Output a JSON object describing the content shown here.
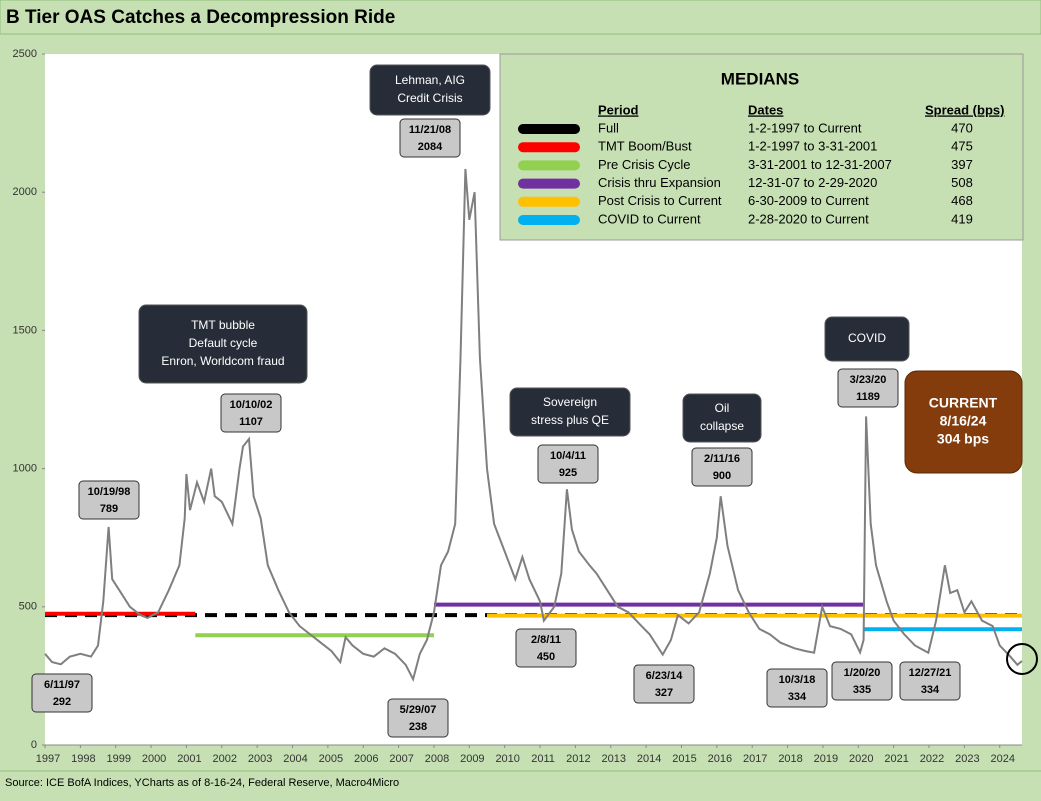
{
  "chart_data": {
    "type": "line",
    "title": "B Tier OAS Catches a Decompression Ride",
    "source": "Source: ICE BofA Indices, YCharts as of 8-16-24, Federal Reserve, Macro4Micro",
    "xlim": [
      1997,
      2024.63
    ],
    "ylim": [
      0,
      2500
    ],
    "xticks": [
      1997,
      1998,
      1999,
      2000,
      2001,
      2002,
      2003,
      2004,
      2005,
      2006,
      2007,
      2008,
      2009,
      2010,
      2011,
      2012,
      2013,
      2014,
      2015,
      2016,
      2017,
      2018,
      2019,
      2020,
      2021,
      2022,
      2023,
      2024
    ],
    "yticks": [
      0,
      500,
      1000,
      1500,
      2000,
      2500
    ],
    "series": [
      {
        "name": "B Tier OAS",
        "color": "#7f7f7f",
        "x": [
          1997.0,
          1997.2,
          1997.45,
          1997.7,
          1998.0,
          1998.3,
          1998.5,
          1998.65,
          1998.8,
          1998.9,
          1999.1,
          1999.4,
          1999.7,
          1999.9,
          2000.2,
          2000.5,
          2000.8,
          2000.95,
          2001.0,
          2001.1,
          2001.3,
          2001.5,
          2001.7,
          2001.8,
          2002.0,
          2002.3,
          2002.5,
          2002.6,
          2002.77,
          2002.9,
          2003.1,
          2003.3,
          2003.6,
          2003.9,
          2004.2,
          2004.5,
          2004.8,
          2005.1,
          2005.35,
          2005.5,
          2005.7,
          2006.0,
          2006.3,
          2006.6,
          2006.9,
          2007.2,
          2007.41,
          2007.6,
          2007.8,
          2008.0,
          2008.2,
          2008.4,
          2008.6,
          2008.75,
          2008.89,
          2009.0,
          2009.15,
          2009.3,
          2009.5,
          2009.7,
          2010.0,
          2010.3,
          2010.5,
          2010.7,
          2011.0,
          2011.11,
          2011.4,
          2011.6,
          2011.76,
          2011.9,
          2012.1,
          2012.4,
          2012.6,
          2012.9,
          2013.2,
          2013.5,
          2013.8,
          2014.1,
          2014.47,
          2014.7,
          2014.9,
          2015.2,
          2015.5,
          2015.8,
          2016.0,
          2016.11,
          2016.3,
          2016.6,
          2016.9,
          2017.2,
          2017.5,
          2017.8,
          2018.2,
          2018.5,
          2018.75,
          2018.98,
          2019.2,
          2019.5,
          2019.8,
          2020.05,
          2020.15,
          2020.22,
          2020.35,
          2020.5,
          2020.8,
          2021.0,
          2021.3,
          2021.6,
          2021.98,
          2022.2,
          2022.45,
          2022.6,
          2022.8,
          2023.0,
          2023.2,
          2023.5,
          2023.8,
          2024.0,
          2024.3,
          2024.5,
          2024.63
        ],
        "values": [
          330,
          300,
          292,
          320,
          330,
          320,
          360,
          520,
          789,
          600,
          560,
          500,
          470,
          460,
          480,
          560,
          650,
          820,
          980,
          850,
          950,
          880,
          1000,
          900,
          880,
          800,
          1000,
          1080,
          1107,
          900,
          820,
          650,
          560,
          480,
          430,
          400,
          370,
          340,
          300,
          390,
          360,
          330,
          320,
          350,
          330,
          290,
          238,
          330,
          380,
          480,
          650,
          700,
          800,
          1400,
          2084,
          1900,
          2000,
          1400,
          1000,
          800,
          700,
          600,
          680,
          600,
          520,
          450,
          500,
          620,
          925,
          780,
          700,
          650,
          620,
          560,
          500,
          480,
          440,
          400,
          327,
          380,
          470,
          440,
          480,
          620,
          750,
          900,
          720,
          560,
          480,
          420,
          400,
          370,
          350,
          340,
          334,
          500,
          430,
          420,
          400,
          335,
          380,
          1189,
          800,
          650,
          520,
          450,
          400,
          360,
          334,
          450,
          650,
          550,
          560,
          480,
          520,
          450,
          430,
          360,
          320,
          290,
          304
        ]
      }
    ],
    "annotations": [
      {
        "label": "6/11/97",
        "value": 292
      },
      {
        "label": "10/19/98",
        "value": 789
      },
      {
        "label": "10/10/02",
        "value": 1107
      },
      {
        "label": "5/29/07",
        "value": 238
      },
      {
        "label": "11/21/08",
        "value": 2084
      },
      {
        "label": "2/8/11",
        "value": 450
      },
      {
        "label": "10/4/11",
        "value": 925
      },
      {
        "label": "6/23/14",
        "value": 327
      },
      {
        "label": "2/11/16",
        "value": 900
      },
      {
        "label": "10/3/18",
        "value": 334
      },
      {
        "label": "1/20/20",
        "value": 335
      },
      {
        "label": "3/23/20",
        "value": 1189
      },
      {
        "label": "12/27/21",
        "value": 334
      }
    ],
    "events": [
      {
        "lines": [
          "Lehman, AIG",
          "Credit Crisis"
        ]
      },
      {
        "lines": [
          "TMT bubble",
          "Default cycle",
          "Enron, Worldcom fraud"
        ]
      },
      {
        "lines": [
          "Sovereign",
          "stress plus QE"
        ]
      },
      {
        "lines": [
          "Oil",
          "collapse"
        ]
      },
      {
        "lines": [
          "COVID"
        ]
      }
    ],
    "current": {
      "lines": [
        "CURRENT",
        "8/16/24",
        "304 bps"
      ]
    },
    "medians": {
      "title": "MEDIANS",
      "headers": [
        "Period",
        "Dates",
        "Spread (bps)"
      ],
      "rows": [
        {
          "period": "Full",
          "dates": "1-2-1997 to Current",
          "value": 470,
          "color": "#000000",
          "x_start": 1997,
          "x_end": 2024.63
        },
        {
          "period": "TMT  Boom/Bust",
          "dates": "1-2-1997 to 3-31-2001",
          "value": 475,
          "color": "#ff0000",
          "x_start": 1997,
          "x_end": 2001.25
        },
        {
          "period": "Pre Crisis Cycle",
          "dates": "3-31-2001  to 12-31-2007",
          "value": 397,
          "color": "#92d050",
          "x_start": 2001.25,
          "x_end": 2008.0
        },
        {
          "period": "Crisis thru Expansion",
          "dates": "12-31-07 to 2-29-2020",
          "value": 508,
          "color": "#7030a0",
          "x_start": 2008.0,
          "x_end": 2020.16
        },
        {
          "period": "Post Crisis to Current",
          "dates": "6-30-2009  to Current",
          "value": 468,
          "color": "#ffc000",
          "x_start": 2009.5,
          "x_end": 2024.63
        },
        {
          "period": "COVID to Current",
          "dates": "2-28-2020  to Current",
          "value": 419,
          "color": "#00b0f0",
          "x_start": 2020.16,
          "x_end": 2024.63
        }
      ]
    }
  }
}
